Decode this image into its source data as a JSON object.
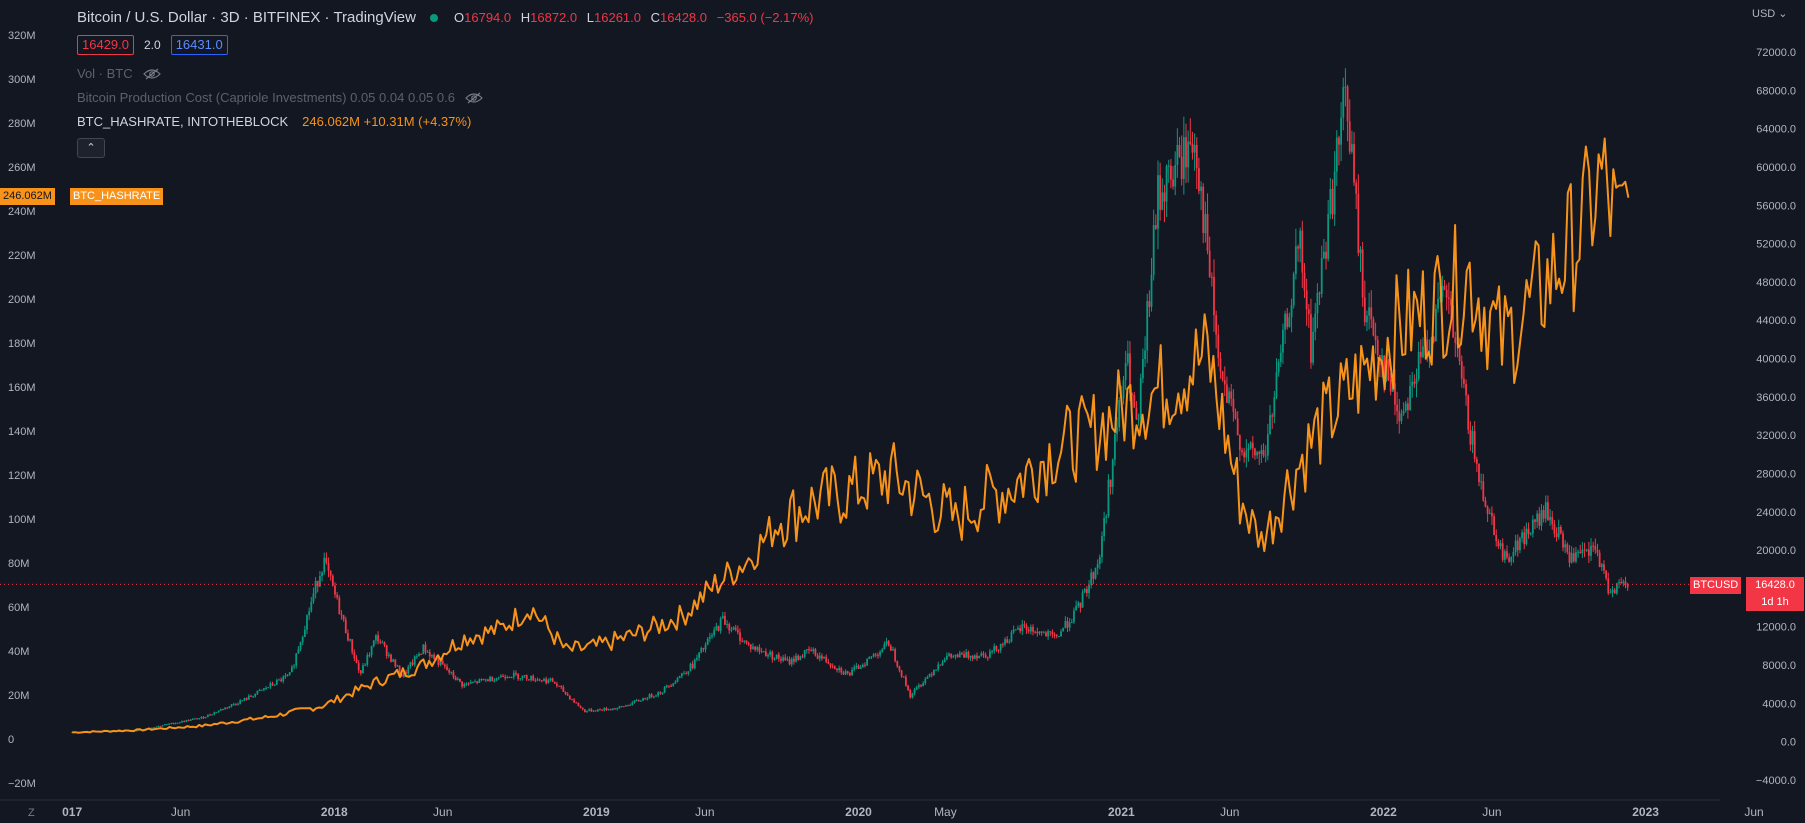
{
  "header": {
    "title": "Bitcoin / U.S. Dollar · 3D · BITFINEX · TradingView",
    "ohlc": [
      {
        "key": "O",
        "value": "16794.0"
      },
      {
        "key": "H",
        "value": "16872.0"
      },
      {
        "key": "L",
        "value": "16261.0"
      },
      {
        "key": "C",
        "value": "16428.0"
      }
    ],
    "change": "−365.0 (−2.17%)",
    "sell_price": "16429.0",
    "spread": "2.0",
    "buy_price": "16431.0"
  },
  "indicators": {
    "volume": "Vol · BTC",
    "production_cost": "Bitcoin Production Cost (Capriole Investments) 0.05 0.04 0.05 0.6",
    "hashrate_name": "BTC_HASHRATE, INTOTHEBLOCK",
    "hashrate_values": "246.062M  +10.31M (+4.37%)",
    "collapse_glyph": "⌃"
  },
  "tags": {
    "hashrate_value": "246.062M",
    "hashrate_name": "BTC_HASHRATE",
    "btc_symbol": "BTCUSD",
    "btc_price": "16428.0",
    "btc_countdown": "1d 1h"
  },
  "corner": {
    "currency": "USD",
    "zoom": "Z"
  },
  "colors": {
    "background": "#131722",
    "hashrate": "#f7931a",
    "up": "#089981",
    "down": "#f23645",
    "last_price": "#f23645",
    "axis_text": "#b2b5be"
  },
  "icons": {
    "eye": "eye-crossed-icon",
    "collapse": "chevron-up-icon",
    "dot": "market-open-dot-icon"
  },
  "chart_data": {
    "type": "line",
    "x_ticks": [
      "017",
      "Jun",
      "2018",
      "Jun",
      "2019",
      "Jun",
      "2020",
      "May",
      "2021",
      "Jun",
      "2022",
      "Jun",
      "2023",
      "Jun"
    ],
    "x_tick_dates": [
      "2017-01-01",
      "2017-06-01",
      "2018-01-01",
      "2018-06-01",
      "2019-01-01",
      "2019-06-01",
      "2020-01-01",
      "2020-05-01",
      "2021-01-01",
      "2021-06-01",
      "2022-01-01",
      "2022-06-01",
      "2023-01-01",
      "2023-06-01"
    ],
    "left_axis": {
      "min": -20000000,
      "max": 320000000,
      "ticks": [
        -20000000,
        0,
        20000000,
        40000000,
        60000000,
        80000000,
        100000000,
        120000000,
        140000000,
        160000000,
        180000000,
        200000000,
        220000000,
        240000000,
        260000000,
        280000000,
        300000000,
        320000000
      ],
      "labels": [
        "−20M",
        "0",
        "20M",
        "40M",
        "60M",
        "80M",
        "100M",
        "120M",
        "140M",
        "160M",
        "180M",
        "200M",
        "220M",
        "240M",
        "260M",
        "280M",
        "300M",
        "320M"
      ]
    },
    "right_axis": {
      "min": -4000,
      "max": 72000,
      "ticks": [
        -4000,
        0,
        4000,
        8000,
        12000,
        16000,
        20000,
        24000,
        28000,
        32000,
        36000,
        40000,
        44000,
        48000,
        52000,
        56000,
        60000,
        64000,
        68000,
        72000
      ],
      "labels": [
        "−4000.0",
        "0.0",
        "4000.0",
        "8000.0",
        "12000.0",
        "16000.0",
        "20000.0",
        "24000.0",
        "28000.0",
        "32000.0",
        "36000.0",
        "40000.0",
        "44000.0",
        "48000.0",
        "52000.0",
        "56000.0",
        "60000.0",
        "64000.0",
        "68000.0",
        "72000.0"
      ]
    },
    "last_price": 16428,
    "series": [
      {
        "name": "BTC_HASHRATE",
        "axis": "left",
        "type": "line",
        "x": [
          "2017-01-01",
          "2017-04-01",
          "2017-07-01",
          "2017-10-01",
          "2017-12-15",
          "2018-03-01",
          "2018-05-01",
          "2018-07-01",
          "2018-08-20",
          "2018-10-01",
          "2018-11-20",
          "2019-01-01",
          "2019-03-01",
          "2019-05-01",
          "2019-06-15",
          "2019-08-01",
          "2019-09-15",
          "2019-11-01",
          "2019-12-15",
          "2020-02-15",
          "2020-05-15",
          "2020-06-15",
          "2020-08-01",
          "2020-10-01",
          "2020-11-15",
          "2021-01-01",
          "2021-03-01",
          "2021-05-01",
          "2021-06-15",
          "2021-07-15",
          "2021-08-20",
          "2021-10-01",
          "2021-12-01",
          "2022-01-15",
          "2022-03-01",
          "2022-05-01",
          "2022-06-15",
          "2022-08-01",
          "2022-10-01",
          "2022-11-01",
          "2022-11-25",
          "2022-12-08"
        ],
        "y": [
          3000000,
          4000000,
          6000000,
          10000000,
          15000000,
          26000000,
          33000000,
          46000000,
          50000000,
          60000000,
          40000000,
          42000000,
          48000000,
          56000000,
          70000000,
          82000000,
          100000000,
          108000000,
          112000000,
          120000000,
          100000000,
          108000000,
          115000000,
          132000000,
          138000000,
          150000000,
          160000000,
          175000000,
          110000000,
          90000000,
          115000000,
          140000000,
          165000000,
          185000000,
          195000000,
          210000000,
          180000000,
          200000000,
          230000000,
          255000000,
          230000000,
          246062000
        ]
      },
      {
        "name": "BTCUSD",
        "axis": "right",
        "type": "candlestick",
        "x": [
          "2017-01-01",
          "2017-04-01",
          "2017-07-01",
          "2017-09-01",
          "2017-11-01",
          "2017-12-17",
          "2018-02-06",
          "2018-03-01",
          "2018-04-06",
          "2018-05-05",
          "2018-06-29",
          "2018-09-01",
          "2018-11-01",
          "2018-12-15",
          "2019-02-01",
          "2019-04-01",
          "2019-05-15",
          "2019-06-26",
          "2019-08-01",
          "2019-09-25",
          "2019-10-26",
          "2019-12-18",
          "2020-02-13",
          "2020-03-13",
          "2020-04-30",
          "2020-07-01",
          "2020-08-17",
          "2020-10-01",
          "2020-11-01",
          "2020-12-01",
          "2021-01-08",
          "2021-01-23",
          "2021-02-21",
          "2021-04-14",
          "2021-05-19",
          "2021-06-22",
          "2021-07-20",
          "2021-09-06",
          "2021-09-22",
          "2021-11-10",
          "2021-12-04",
          "2022-01-24",
          "2022-03-29",
          "2022-05-12",
          "2022-06-18",
          "2022-08-15",
          "2022-09-20",
          "2022-10-25",
          "2022-11-09",
          "2022-12-08"
        ],
        "y": [
          1000,
          1200,
          2500,
          4500,
          7000,
          19000,
          7000,
          11000,
          6800,
          9800,
          5900,
          7000,
          6300,
          3200,
          3500,
          5200,
          8000,
          12800,
          10000,
          8300,
          9500,
          7000,
          10300,
          4800,
          8800,
          9200,
          12000,
          10800,
          13800,
          19000,
          40000,
          32000,
          57000,
          63000,
          38000,
          30000,
          30000,
          52000,
          41000,
          68000,
          46000,
          34000,
          47000,
          28000,
          19000,
          24000,
          19000,
          20000,
          16000,
          16428
        ]
      }
    ]
  }
}
